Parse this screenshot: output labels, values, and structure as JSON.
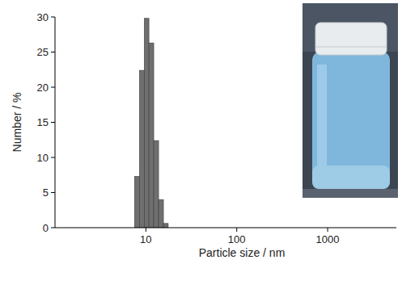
{
  "chart_data": {
    "type": "histogram",
    "x_label": "Particle size / nm",
    "y_label": "Number / %",
    "bins": [
      7.5,
      8.5,
      9.6,
      10.8,
      12.2,
      13.8,
      15.6,
      17.6
    ],
    "values": [
      7.3,
      22.4,
      29.8,
      26.3,
      12.4,
      4.0,
      0.6
    ],
    "color": "#6f6f6f",
    "log": "x",
    "xlim": [
      1,
      5700
    ],
    "xticks": [
      10,
      100,
      1000
    ],
    "ylim": [
      0,
      30
    ],
    "yticks": [
      0,
      5,
      10,
      15,
      20,
      25,
      30
    ],
    "grid": false
  }
}
